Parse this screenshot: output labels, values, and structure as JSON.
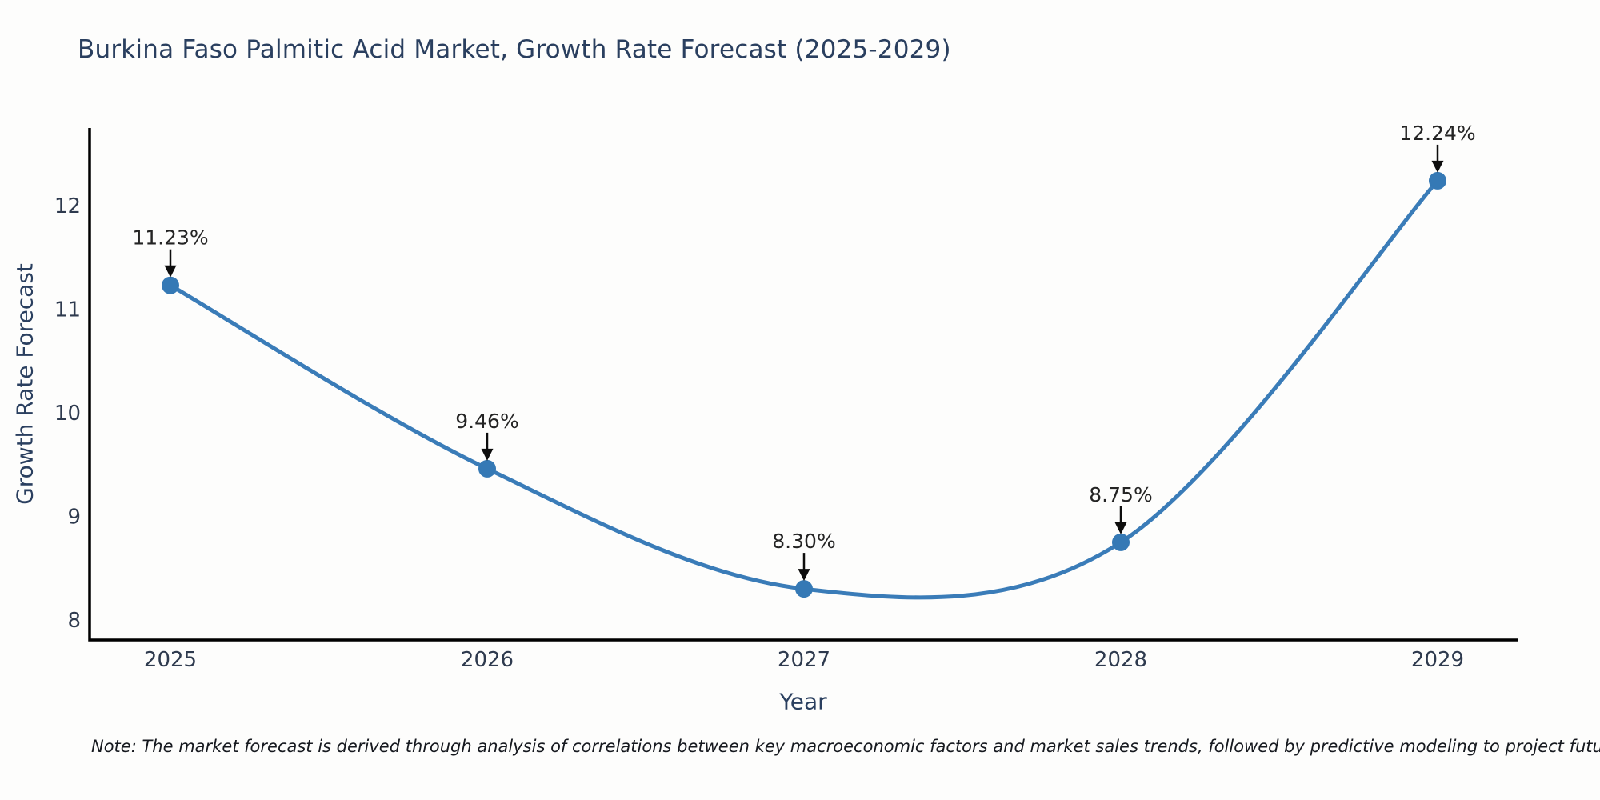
{
  "note": "Note: The market forecast is derived through analysis of correlations between key macroeconomic factors and market sales trends, followed by predictive modeling to project future sales",
  "chart_data": {
    "type": "line",
    "title": "Burkina Faso Palmitic Acid Market, Growth Rate Forecast (2025-2029)",
    "xlabel": "Year",
    "ylabel": "Growth Rate Forecast",
    "x": [
      2025,
      2026,
      2027,
      2028,
      2029
    ],
    "series": [
      {
        "name": "Growth Rate Forecast",
        "values": [
          11.23,
          9.46,
          8.3,
          8.75,
          12.24
        ],
        "point_labels": [
          "11.23%",
          "9.46%",
          "8.30%",
          "8.75%",
          "12.24%"
        ]
      }
    ],
    "x_ticks": [
      "2025",
      "2026",
      "2027",
      "2028",
      "2029"
    ],
    "y_ticks": [
      8,
      9,
      10,
      11,
      12
    ],
    "xlim": [
      2024.74,
      2029.25
    ],
    "ylim": [
      7.81,
      12.75
    ],
    "line_shape": "spline",
    "grid": false,
    "legend": "none",
    "colors": {
      "line": "#3a7cb8",
      "marker": "#3579b5",
      "annotation_arrow": "#0d0d0d",
      "axis_spine": "#000000",
      "title_text": "#2a3f5f",
      "tick_text": "#2e3a4e"
    }
  }
}
